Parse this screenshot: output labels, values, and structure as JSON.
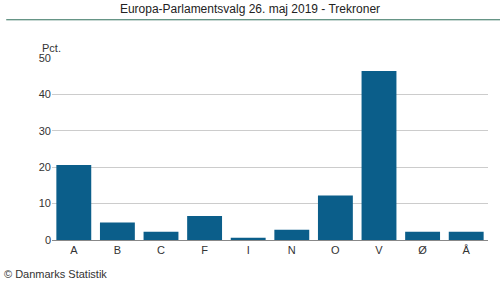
{
  "chart_data": {
    "type": "bar",
    "title": "Europa-Parlamentsvalg 26. maj 2019 - Trekroner",
    "y_label": "Pct.",
    "source": "© Danmarks Statistik",
    "categories": [
      "A",
      "B",
      "C",
      "F",
      "I",
      "N",
      "O",
      "V",
      "Ø",
      "Å"
    ],
    "values": [
      20.6,
      4.8,
      2.3,
      6.6,
      0.6,
      2.8,
      12.2,
      46.4,
      2.3,
      2.3
    ],
    "color": "#0b5e8a",
    "ylim": [
      0,
      50
    ],
    "yticks": [
      0,
      10,
      20,
      30,
      40,
      50
    ],
    "grid": true
  }
}
